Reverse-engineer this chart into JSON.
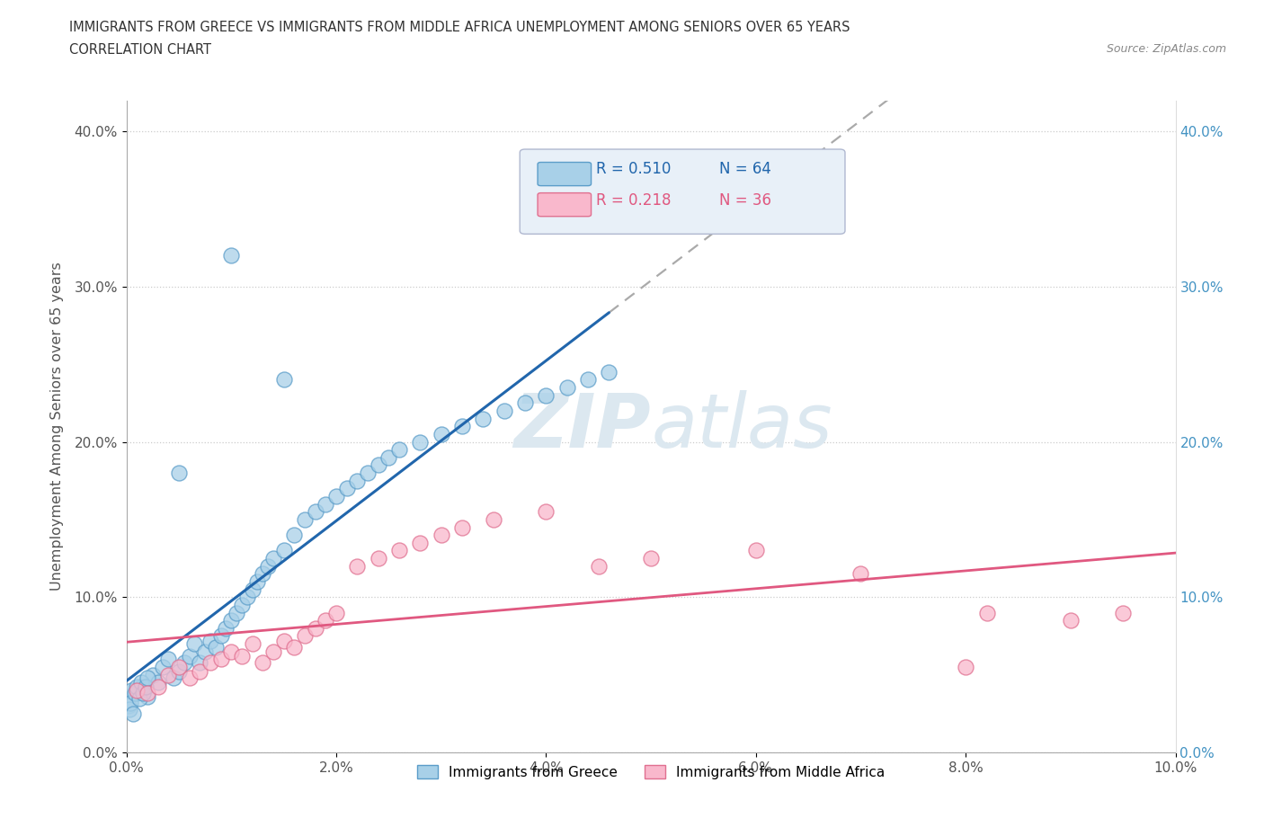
{
  "title_line1": "IMMIGRANTS FROM GREECE VS IMMIGRANTS FROM MIDDLE AFRICA UNEMPLOYMENT AMONG SENIORS OVER 65 YEARS",
  "title_line2": "CORRELATION CHART",
  "source": "Source: ZipAtlas.com",
  "ylabel": "Unemployment Among Seniors over 65 years",
  "xlim": [
    0.0,
    0.1
  ],
  "ylim": [
    0.0,
    0.42
  ],
  "xtick_vals": [
    0.0,
    0.02,
    0.04,
    0.06,
    0.08,
    0.1
  ],
  "xtick_labels": [
    "0.0%",
    "2.0%",
    "4.0%",
    "6.0%",
    "8.0%",
    "10.0%"
  ],
  "ytick_vals": [
    0.0,
    0.1,
    0.2,
    0.3,
    0.4
  ],
  "ytick_labels": [
    "0.0%",
    "10.0%",
    "20.0%",
    "30.0%",
    "40.0%"
  ],
  "color_greece_fill": "#a8d0e8",
  "color_greece_edge": "#5b9dc9",
  "color_greece_line": "#2166ac",
  "color_africa_fill": "#f9b8cc",
  "color_africa_edge": "#e07090",
  "color_africa_line": "#e05880",
  "R_greece": 0.51,
  "N_greece": 64,
  "R_africa": 0.218,
  "N_africa": 36,
  "greece_x": [
    0.0005,
    0.001,
    0.0015,
    0.002,
    0.0025,
    0.003,
    0.0035,
    0.004,
    0.0045,
    0.005,
    0.0055,
    0.006,
    0.0065,
    0.007,
    0.0075,
    0.008,
    0.0085,
    0.009,
    0.0095,
    0.01,
    0.0105,
    0.011,
    0.0115,
    0.012,
    0.0125,
    0.013,
    0.0135,
    0.014,
    0.015,
    0.016,
    0.017,
    0.018,
    0.019,
    0.02,
    0.021,
    0.022,
    0.023,
    0.024,
    0.025,
    0.026,
    0.028,
    0.03,
    0.032,
    0.034,
    0.036,
    0.038,
    0.04,
    0.042,
    0.044,
    0.046,
    0.0002,
    0.0003,
    0.0004,
    0.0006,
    0.0008,
    0.001,
    0.0012,
    0.0014,
    0.0016,
    0.0018,
    0.002,
    0.005,
    0.01,
    0.015
  ],
  "greece_y": [
    0.04,
    0.038,
    0.042,
    0.036,
    0.05,
    0.045,
    0.055,
    0.06,
    0.048,
    0.052,
    0.058,
    0.062,
    0.07,
    0.058,
    0.065,
    0.072,
    0.068,
    0.075,
    0.08,
    0.085,
    0.09,
    0.095,
    0.1,
    0.105,
    0.11,
    0.115,
    0.12,
    0.125,
    0.13,
    0.14,
    0.15,
    0.155,
    0.16,
    0.165,
    0.17,
    0.175,
    0.18,
    0.185,
    0.19,
    0.195,
    0.2,
    0.205,
    0.21,
    0.215,
    0.22,
    0.225,
    0.23,
    0.235,
    0.24,
    0.245,
    0.03,
    0.028,
    0.032,
    0.025,
    0.038,
    0.042,
    0.035,
    0.045,
    0.038,
    0.042,
    0.048,
    0.18,
    0.32,
    0.24
  ],
  "africa_x": [
    0.001,
    0.002,
    0.003,
    0.004,
    0.005,
    0.006,
    0.007,
    0.008,
    0.009,
    0.01,
    0.011,
    0.012,
    0.013,
    0.014,
    0.015,
    0.016,
    0.017,
    0.018,
    0.019,
    0.02,
    0.022,
    0.024,
    0.026,
    0.028,
    0.03,
    0.032,
    0.035,
    0.04,
    0.045,
    0.05,
    0.06,
    0.07,
    0.08,
    0.082,
    0.09,
    0.095
  ],
  "africa_y": [
    0.04,
    0.038,
    0.042,
    0.05,
    0.055,
    0.048,
    0.052,
    0.058,
    0.06,
    0.065,
    0.062,
    0.07,
    0.058,
    0.065,
    0.072,
    0.068,
    0.075,
    0.08,
    0.085,
    0.09,
    0.12,
    0.125,
    0.13,
    0.135,
    0.14,
    0.145,
    0.15,
    0.155,
    0.12,
    0.125,
    0.13,
    0.115,
    0.055,
    0.09,
    0.085,
    0.09
  ],
  "legend_box_color": "#e8f0f8",
  "legend_box_edge": "#b0b8d0",
  "watermark_color": "#dce8f0",
  "right_tick_color": "#4393c3"
}
